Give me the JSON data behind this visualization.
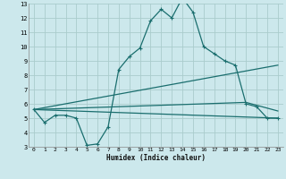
{
  "xlabel": "Humidex (Indice chaleur)",
  "ylabel": "",
  "xlim": [
    -0.5,
    23.5
  ],
  "ylim": [
    3,
    13
  ],
  "xticks": [
    0,
    1,
    2,
    3,
    4,
    5,
    6,
    7,
    8,
    9,
    10,
    11,
    12,
    13,
    14,
    15,
    16,
    17,
    18,
    19,
    20,
    21,
    22,
    23
  ],
  "yticks": [
    3,
    4,
    5,
    6,
    7,
    8,
    9,
    10,
    11,
    12,
    13
  ],
  "bg_color": "#cce8ec",
  "grid_color": "#aacccc",
  "line_color": "#1a6e6e",
  "line1_x": [
    0,
    1,
    2,
    3,
    4,
    5,
    6,
    7,
    8,
    9,
    10,
    11,
    12,
    13,
    14,
    15,
    16,
    17,
    18,
    19,
    20,
    21,
    22,
    23
  ],
  "line1_y": [
    5.6,
    4.7,
    5.2,
    5.2,
    5.0,
    3.1,
    3.2,
    4.4,
    8.4,
    9.3,
    9.9,
    11.8,
    12.6,
    12.0,
    13.4,
    12.4,
    10.0,
    9.5,
    9.0,
    8.7,
    6.0,
    5.8,
    5.0,
    5.0
  ],
  "line2_x": [
    0,
    23
  ],
  "line2_y": [
    5.6,
    8.7
  ],
  "line3_x": [
    0,
    20,
    23
  ],
  "line3_y": [
    5.6,
    6.1,
    5.5
  ],
  "line4_x": [
    0,
    23
  ],
  "line4_y": [
    5.6,
    5.0
  ]
}
